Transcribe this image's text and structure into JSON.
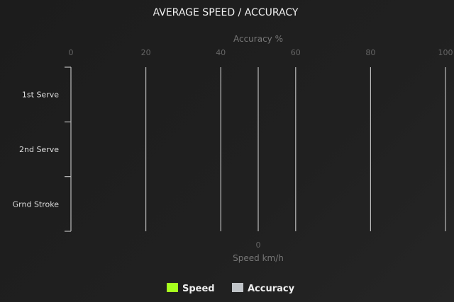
{
  "chart_data": {
    "type": "bar",
    "orientation": "horizontal",
    "title": "AVERAGE SPEED / ACCURACY",
    "categories": [
      "1st Serve",
      "2nd Serve",
      "Grnd Stroke"
    ],
    "x_top": {
      "label": "Accuracy %",
      "ticks": [
        "0",
        "20",
        "40",
        "60",
        "80",
        "100"
      ],
      "range": [
        0,
        100
      ]
    },
    "x_bottom": {
      "label": "Speed km/h",
      "ticks": [
        "0"
      ]
    },
    "grid": true,
    "legend_position": "bottom",
    "series": [
      {
        "name": "Speed",
        "color": "#a6ff1e",
        "values": [
          null,
          null,
          null
        ]
      },
      {
        "name": "Accuracy",
        "color": "#c0c4c8",
        "values": [
          null,
          null,
          null
        ]
      }
    ]
  }
}
